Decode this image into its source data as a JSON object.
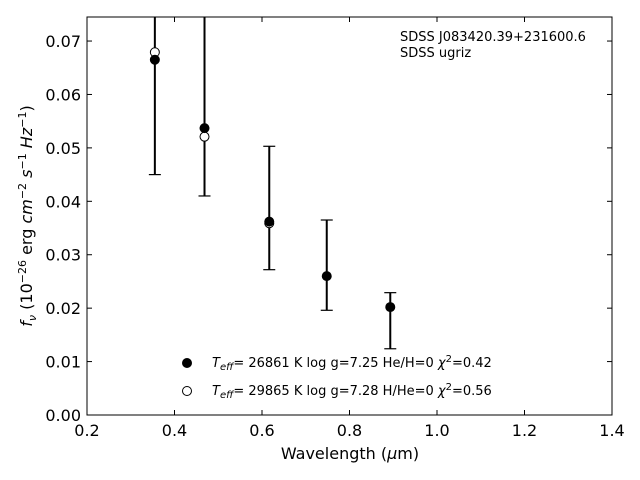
{
  "chart_data": {
    "type": "scatter",
    "title": "",
    "xlabel": "Wavelength (μm)",
    "ylabel": "f_ν (10^-26 erg cm^-2 s^-1 Hz^-1)",
    "xlim": [
      0.2,
      1.4
    ],
    "ylim": [
      0.0,
      0.0745
    ],
    "xticks": [
      "0.2",
      "0.4",
      "0.6",
      "0.8",
      "1.0",
      "1.2",
      "1.4"
    ],
    "yticks": [
      "0.00",
      "0.01",
      "0.02",
      "0.03",
      "0.04",
      "0.05",
      "0.06",
      "0.07"
    ],
    "grid": false,
    "annotation": [
      "SDSS J083420.39+231600.6",
      "SDSS ugriz"
    ],
    "observed": {
      "x": [
        0.3551,
        0.4686,
        0.6166,
        0.748,
        0.8932
      ],
      "y": [
        0.0665,
        0.0537,
        0.0362,
        0.026,
        0.0202
      ],
      "yerr_low": [
        0.045,
        0.041,
        0.0272,
        0.0196,
        0.0124
      ],
      "yerr_high": [
        0.0745,
        0.0745,
        0.0503,
        0.0365,
        0.0229
      ]
    },
    "series": [
      {
        "name": "T_eff= 26861 K  log g=7.25  He/H=0  χ²=0.42",
        "marker": "filled-circle",
        "x": [
          0.3551,
          0.4686,
          0.6166,
          0.748,
          0.8932
        ],
        "y": [
          0.0665,
          0.0537,
          0.0362,
          0.026,
          0.0202
        ]
      },
      {
        "name": "T_eff= 29865 K  log g=7.28  H/He=0  χ²=0.56",
        "marker": "open-circle",
        "x": [
          0.3551,
          0.4686,
          0.6166
        ],
        "y": [
          0.0679,
          0.0521,
          0.0359
        ]
      }
    ],
    "legend_position": "bottom-center"
  }
}
